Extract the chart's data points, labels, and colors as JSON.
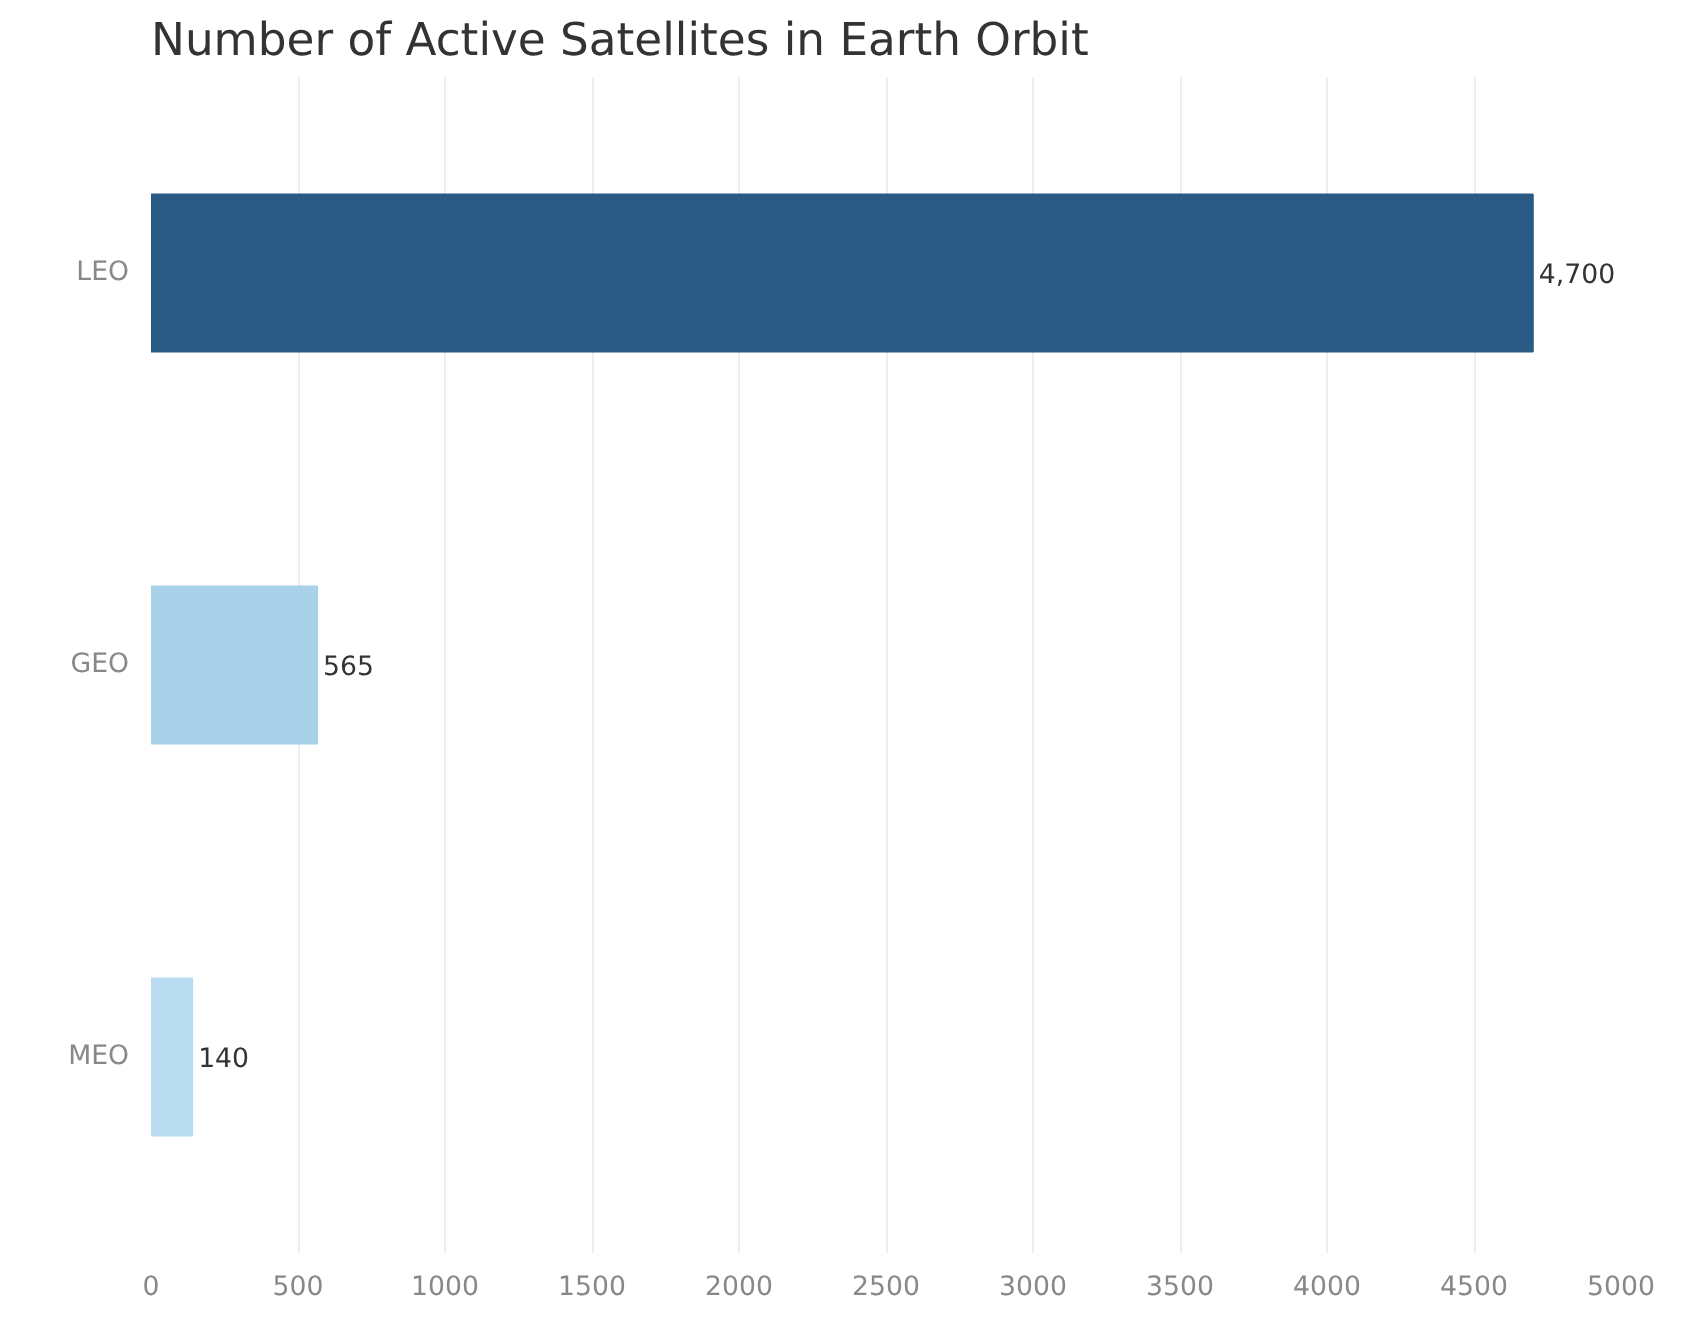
{
  "chart_data": {
    "type": "bar",
    "orientation": "horizontal",
    "title": "Number of Active Satellites in Earth Orbit",
    "categories": [
      "LEO",
      "GEO",
      "MEO"
    ],
    "values": [
      4700,
      565,
      140
    ],
    "colors": [
      "#2b5b84",
      "#a9d1ea",
      "#b9dcf0"
    ],
    "value_labels": [
      "4,700",
      "565",
      "140"
    ],
    "xlim": [
      0,
      5000
    ],
    "xticks": [
      0,
      500,
      1000,
      1500,
      2000,
      2500,
      3000,
      3500,
      4000,
      4500,
      5000
    ],
    "grid": "x"
  }
}
